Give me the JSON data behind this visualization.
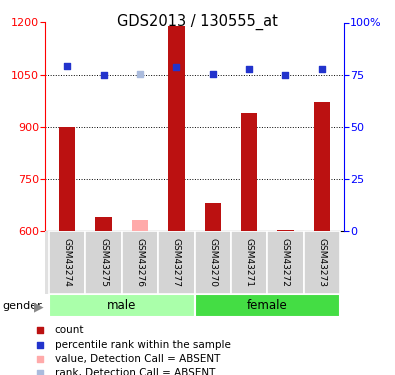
{
  "title": "GDS2013 / 130555_at",
  "samples": [
    "GSM43274",
    "GSM43275",
    "GSM43276",
    "GSM43277",
    "GSM43270",
    "GSM43271",
    "GSM43272",
    "GSM43273"
  ],
  "gender_groups": [
    {
      "label": "male",
      "indices": [
        0,
        1,
        2,
        3
      ],
      "color": "#aaffaa"
    },
    {
      "label": "female",
      "indices": [
        4,
        5,
        6,
        7
      ],
      "color": "#44dd44"
    }
  ],
  "absent_indices": [
    2
  ],
  "count_values": [
    900,
    640,
    630,
    1190,
    680,
    940,
    602,
    970
  ],
  "rank_values": [
    1075,
    1050,
    1052,
    1073,
    1052,
    1065,
    1048,
    1065
  ],
  "ylim_left": [
    600,
    1200
  ],
  "ylim_right": [
    0,
    100
  ],
  "yticks_left": [
    600,
    750,
    900,
    1050,
    1200
  ],
  "yticks_right": [
    0,
    25,
    50,
    75,
    100
  ],
  "bar_color_present": "#bb1111",
  "bar_color_absent": "#ffaaaa",
  "rank_color_present": "#2233cc",
  "rank_color_absent": "#aabbdd",
  "bar_width": 0.45,
  "legend_items": [
    {
      "label": "count",
      "color": "#bb1111",
      "marker": "s"
    },
    {
      "label": "percentile rank within the sample",
      "color": "#2233cc",
      "marker": "s"
    },
    {
      "label": "value, Detection Call = ABSENT",
      "color": "#ffaaaa",
      "marker": "s"
    },
    {
      "label": "rank, Detection Call = ABSENT",
      "color": "#aabbdd",
      "marker": "s"
    }
  ]
}
